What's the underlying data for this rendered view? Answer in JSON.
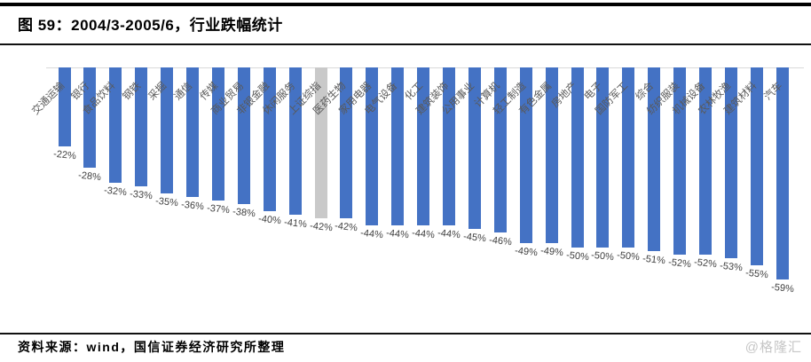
{
  "header": {
    "title": "图 59：2004/3-2005/6，行业跌幅统计"
  },
  "footer": {
    "source": "资料来源：wind，国信证券经济研究所整理",
    "watermark": "@格隆汇"
  },
  "chart_data": {
    "type": "bar",
    "title": "2004/3-2005/6 行业跌幅统计",
    "orientation": "vertical-negative",
    "categories": [
      "交通运输",
      "银行",
      "食品饮料",
      "钢铁",
      "采掘",
      "通信",
      "传媒",
      "商业贸易",
      "非银金融",
      "休闲服务",
      "上证综指",
      "医药生物",
      "家用电器",
      "电气设备",
      "化工",
      "建筑装饰",
      "公用事业",
      "计算机",
      "轻工制造",
      "有色金属",
      "房地产",
      "电子",
      "国防军工",
      "综合",
      "纺织服装",
      "机械设备",
      "农林牧渔",
      "建筑材料",
      "汽车"
    ],
    "values": [
      -22,
      -28,
      -32,
      -33,
      -35,
      -36,
      -37,
      -38,
      -40,
      -41,
      -42,
      -42,
      -44,
      -44,
      -44,
      -44,
      -45,
      -46,
      -49,
      -49,
      -50,
      -50,
      -50,
      -51,
      -52,
      -52,
      -53,
      -55,
      -59
    ],
    "value_suffix": "%",
    "highlight_category": "上证综指",
    "bar_color": "#4472C4",
    "highlight_color": "#C9C9C9",
    "value_label_color": "#404040",
    "category_label_color": "#595959",
    "ylim": [
      -60,
      0
    ],
    "grid": false,
    "legend": false
  }
}
